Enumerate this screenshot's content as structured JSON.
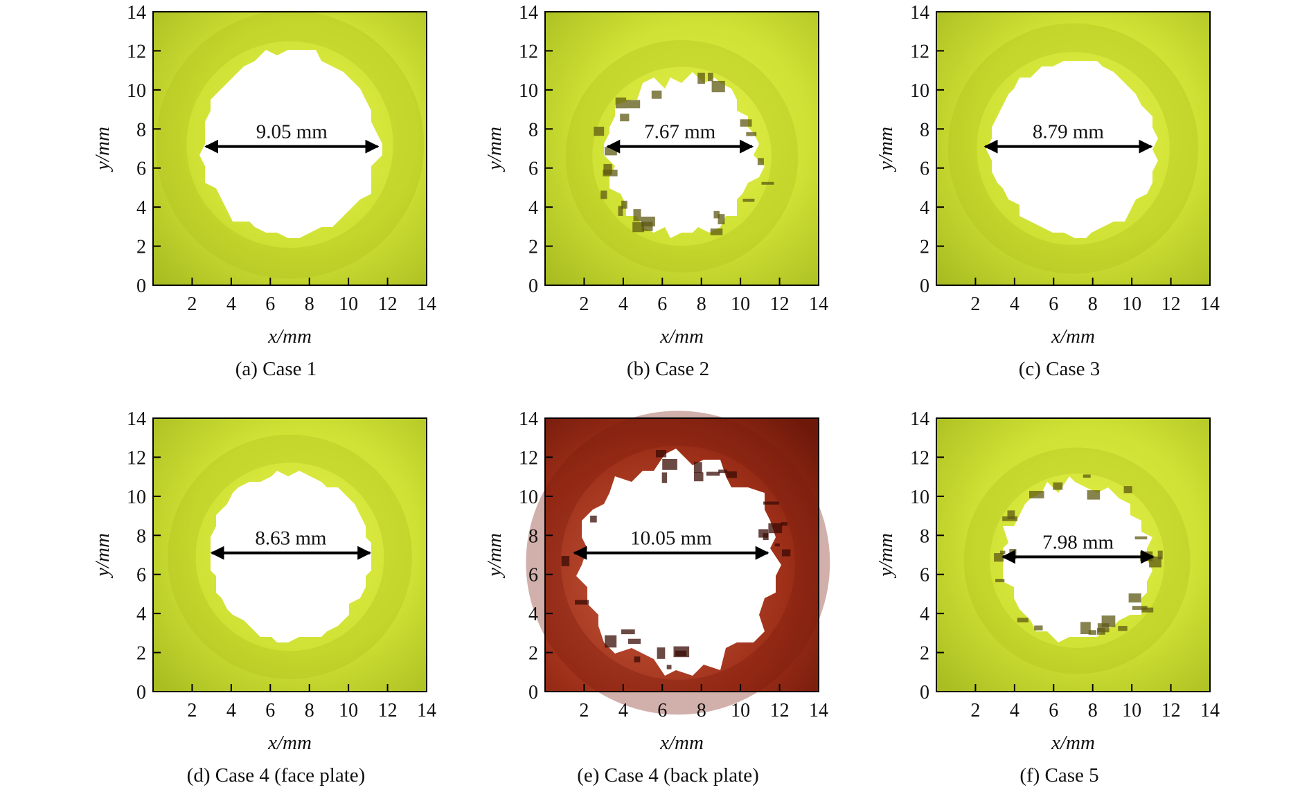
{
  "figure": {
    "x_axis_label": "x/mm",
    "y_axis_label": "y/mm",
    "colors": {
      "plate_yellow": "#d9ea3a",
      "plate_yellow_dark": "#aebf1e",
      "plate_red": "#b8432a",
      "plate_red_dark": "#7a1e0e",
      "hole": "#ffffff",
      "debris": "#5f5a14",
      "axis": "#000000"
    }
  },
  "chart_data": [
    {
      "type": "image-plot",
      "caption": "(a) Case 1",
      "xlabel": "x/mm",
      "ylabel": "y/mm",
      "xlim": [
        0,
        14
      ],
      "ylim": [
        0,
        14
      ],
      "xticks": [
        "2",
        "4",
        "6",
        "8",
        "10",
        "12",
        "14"
      ],
      "yticks": [
        "0",
        "2",
        "4",
        "6",
        "8",
        "10",
        "12",
        "14"
      ],
      "hole_center": [
        7,
        7.2
      ],
      "hole_radius": 4.5,
      "dimension": {
        "label": "9.05 mm",
        "x_start": 2.7,
        "x_end": 11.5,
        "y": 7.1
      },
      "plate": "yellow",
      "debris": false
    },
    {
      "type": "image-plot",
      "caption": "(b) Case 2",
      "xlabel": "x/mm",
      "ylabel": "y/mm",
      "xlim": [
        0,
        14
      ],
      "ylim": [
        0,
        14
      ],
      "xticks": [
        "2",
        "4",
        "6",
        "8",
        "10",
        "12",
        "14"
      ],
      "yticks": [
        "0",
        "2",
        "4",
        "6",
        "8",
        "10",
        "12",
        "14"
      ],
      "hole_center": [
        7,
        6.6
      ],
      "hole_radius": 3.9,
      "dimension": {
        "label": "7.67 mm",
        "x_start": 3.2,
        "x_end": 10.6,
        "y": 7.1
      },
      "plate": "yellow",
      "debris": true
    },
    {
      "type": "image-plot",
      "caption": "(c) Case 3",
      "xlabel": "x/mm",
      "ylabel": "y/mm",
      "xlim": [
        0,
        14
      ],
      "ylim": [
        0,
        14
      ],
      "xticks": [
        "2",
        "4",
        "6",
        "8",
        "10",
        "12",
        "14"
      ],
      "yticks": [
        "0",
        "2",
        "4",
        "6",
        "8",
        "10",
        "12",
        "14"
      ],
      "hole_center": [
        7,
        7.0
      ],
      "hole_radius": 4.2,
      "dimension": {
        "label": "8.79 mm",
        "x_start": 2.5,
        "x_end": 11.0,
        "y": 7.1
      },
      "plate": "yellow",
      "debris": false
    },
    {
      "type": "image-plot",
      "caption": "(d) Case 4 (face plate)",
      "xlabel": "x/mm",
      "ylabel": "y/mm",
      "xlim": [
        0,
        14
      ],
      "ylim": [
        0,
        14
      ],
      "xticks": [
        "2",
        "4",
        "6",
        "8",
        "10",
        "12",
        "14"
      ],
      "yticks": [
        "0",
        "2",
        "4",
        "6",
        "8",
        "10",
        "12",
        "14"
      ],
      "hole_center": [
        7,
        6.9
      ],
      "hole_radius": 4.1,
      "dimension": {
        "label": "8.63 mm",
        "x_start": 3.0,
        "x_end": 11.1,
        "y": 7.1
      },
      "plate": "yellow",
      "debris": false
    },
    {
      "type": "image-plot",
      "caption": "(e) Case 4 (back plate)",
      "xlabel": "x/mm",
      "ylabel": "y/mm",
      "xlim": [
        0,
        14
      ],
      "ylim": [
        0,
        14
      ],
      "xticks": [
        "2",
        "4",
        "6",
        "8",
        "10",
        "12",
        "14"
      ],
      "yticks": [
        "0",
        "2",
        "4",
        "6",
        "8",
        "10",
        "12",
        "14"
      ],
      "hole_center": [
        6.8,
        6.6
      ],
      "hole_radius": 5.1,
      "dimension": {
        "label": "10.05 mm",
        "x_start": 1.5,
        "x_end": 11.4,
        "y": 7.1
      },
      "plate": "red",
      "debris": true
    },
    {
      "type": "image-plot",
      "caption": "(f) Case 5",
      "xlabel": "x/mm",
      "ylabel": "y/mm",
      "xlim": [
        0,
        14
      ],
      "ylim": [
        0,
        14
      ],
      "xticks": [
        "2",
        "4",
        "6",
        "8",
        "10",
        "12",
        "14"
      ],
      "yticks": [
        "0",
        "2",
        "4",
        "6",
        "8",
        "10",
        "12",
        "14"
      ],
      "hole_center": [
        7.2,
        6.7
      ],
      "hole_radius": 3.8,
      "dimension": {
        "label": "7.98 mm",
        "x_start": 3.4,
        "x_end": 11.1,
        "y": 6.9
      },
      "plate": "yellow",
      "debris": true
    }
  ]
}
